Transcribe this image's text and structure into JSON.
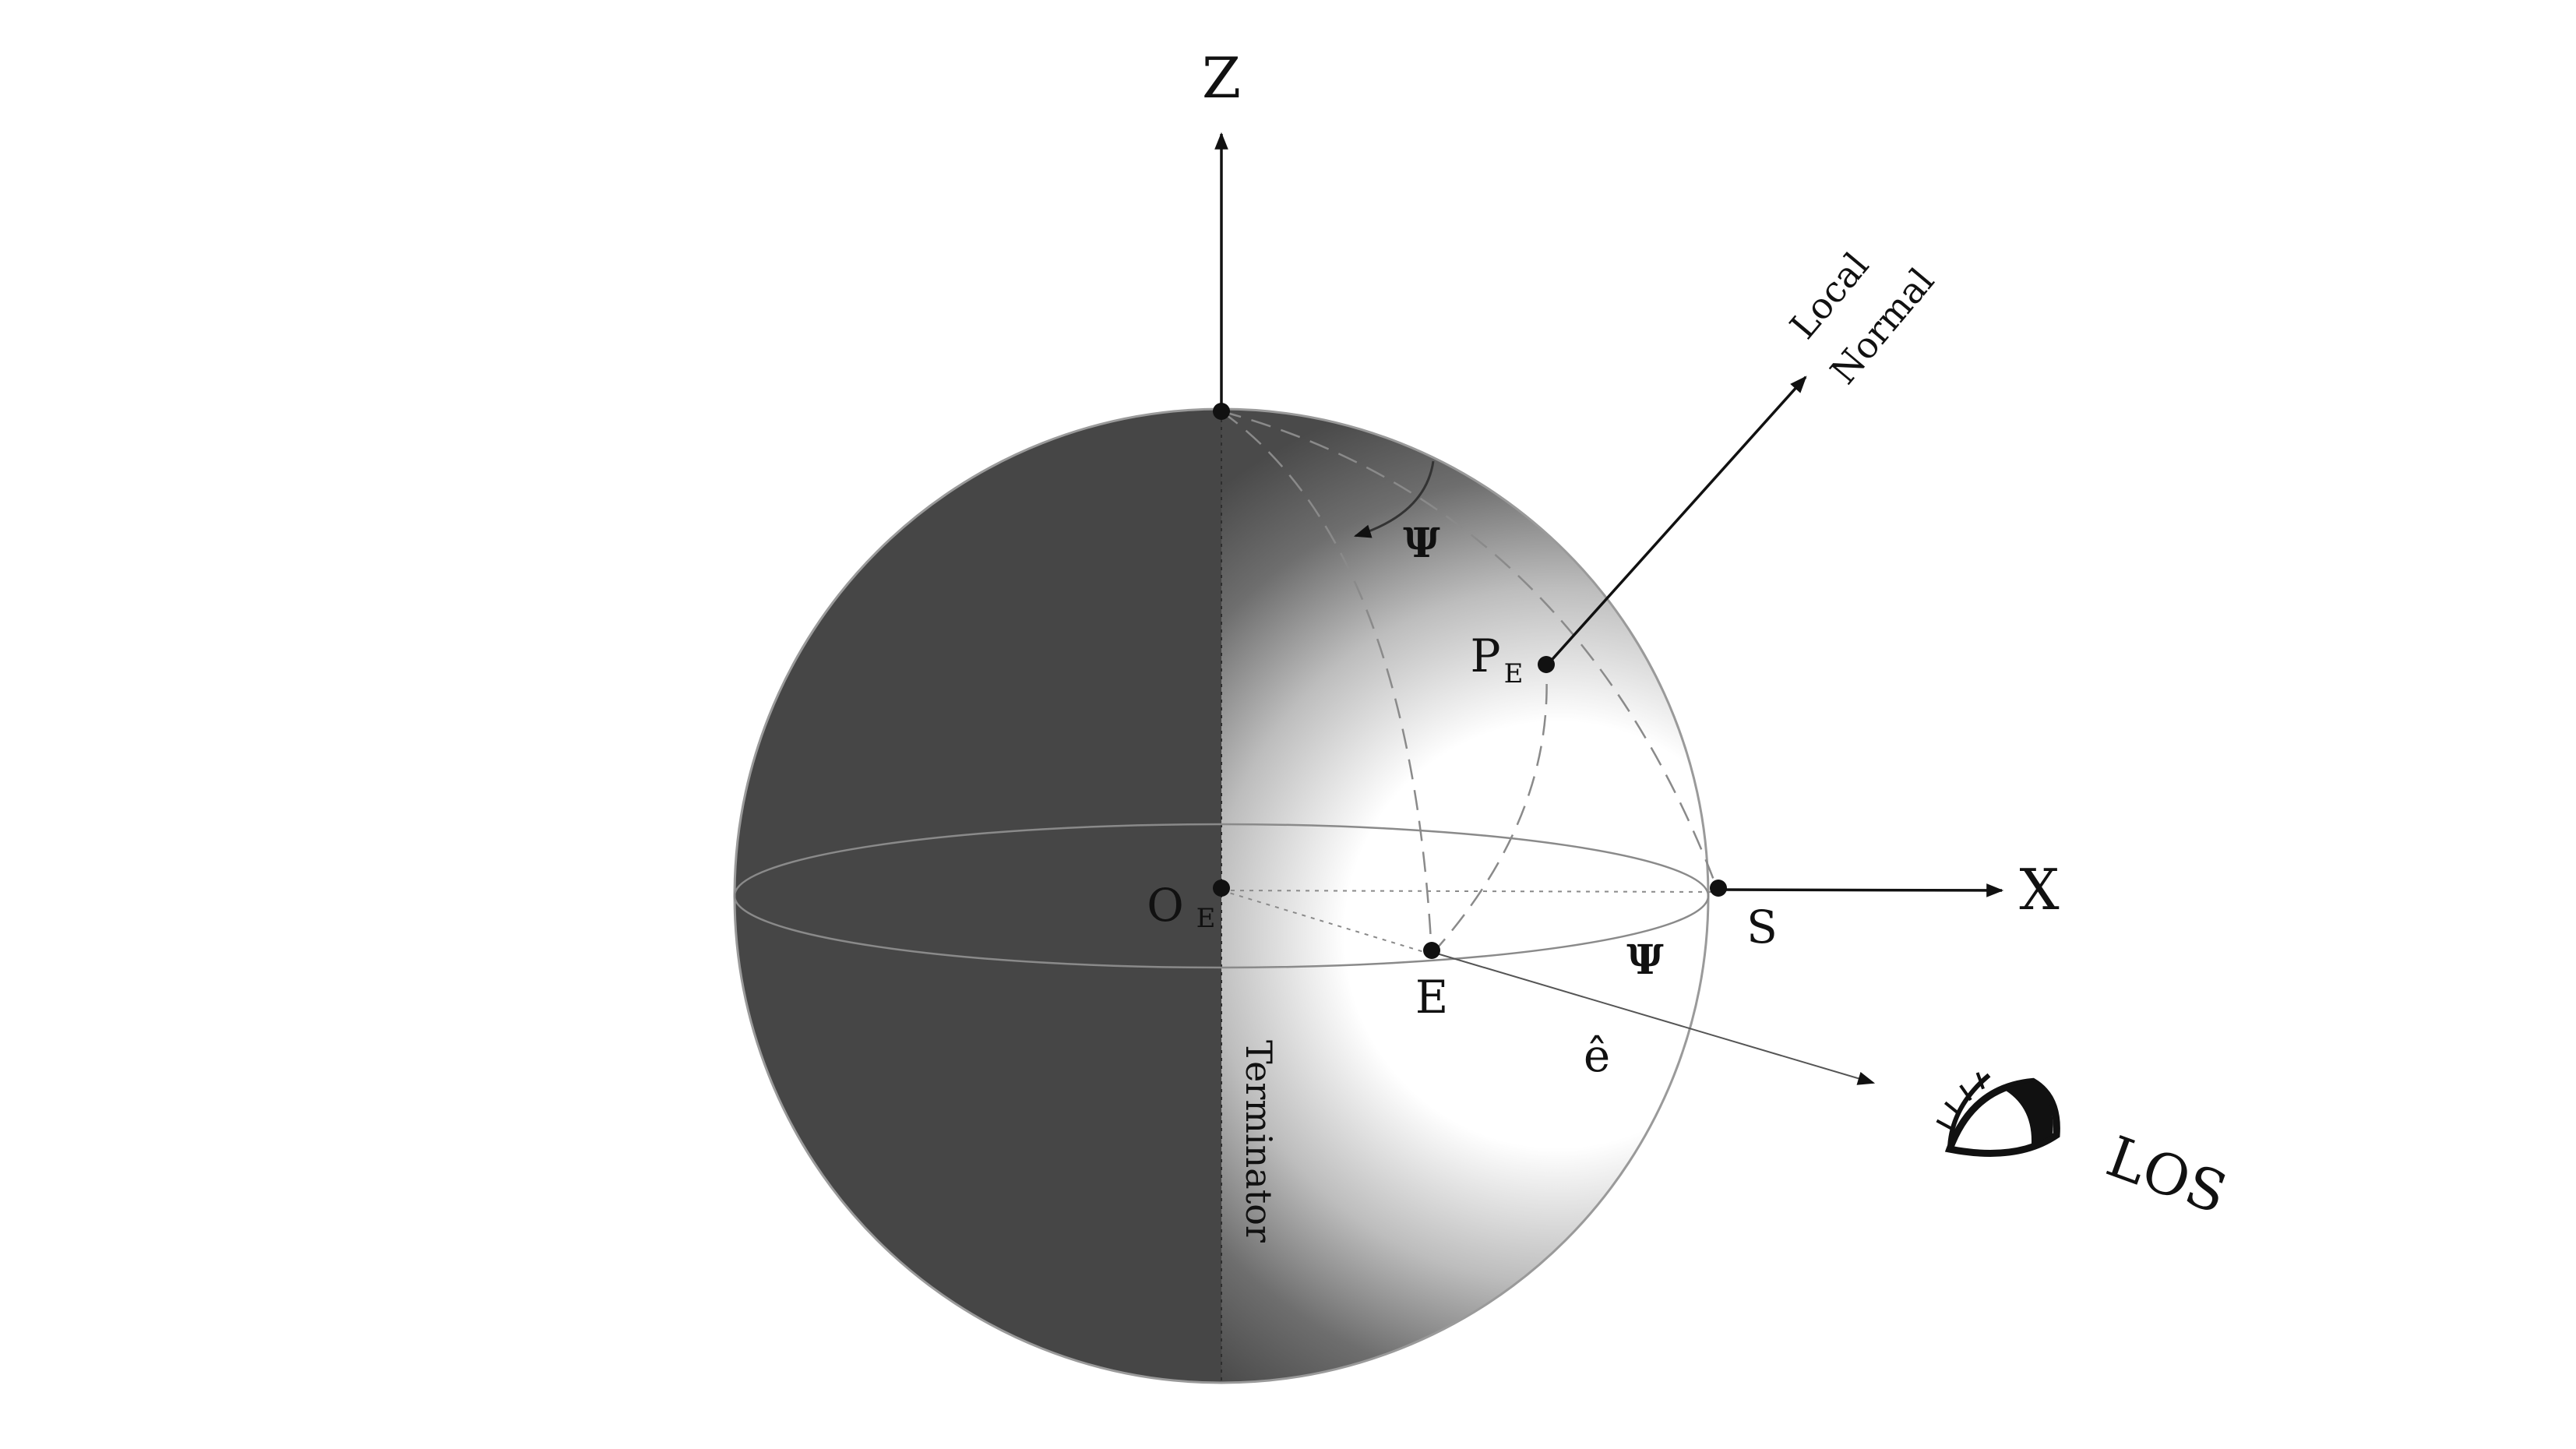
{
  "labels": {
    "z_axis": "Z",
    "x_axis": "X",
    "origin": "O",
    "origin_sub": "E",
    "point_p": "P",
    "point_p_sub": "E",
    "point_e": "E",
    "point_s": "S",
    "psi_top": "Ψ",
    "psi_bottom": "Ψ",
    "e_hat": "ê",
    "terminator": "Terminator",
    "local_normal_line1": "Local",
    "local_normal_line2": "Normal",
    "los": "LOS"
  },
  "icons": {
    "eye": "eye-icon"
  },
  "colors": {
    "dark_side": "#464646",
    "lit_side": "#ffffff",
    "ink": "#111111"
  }
}
